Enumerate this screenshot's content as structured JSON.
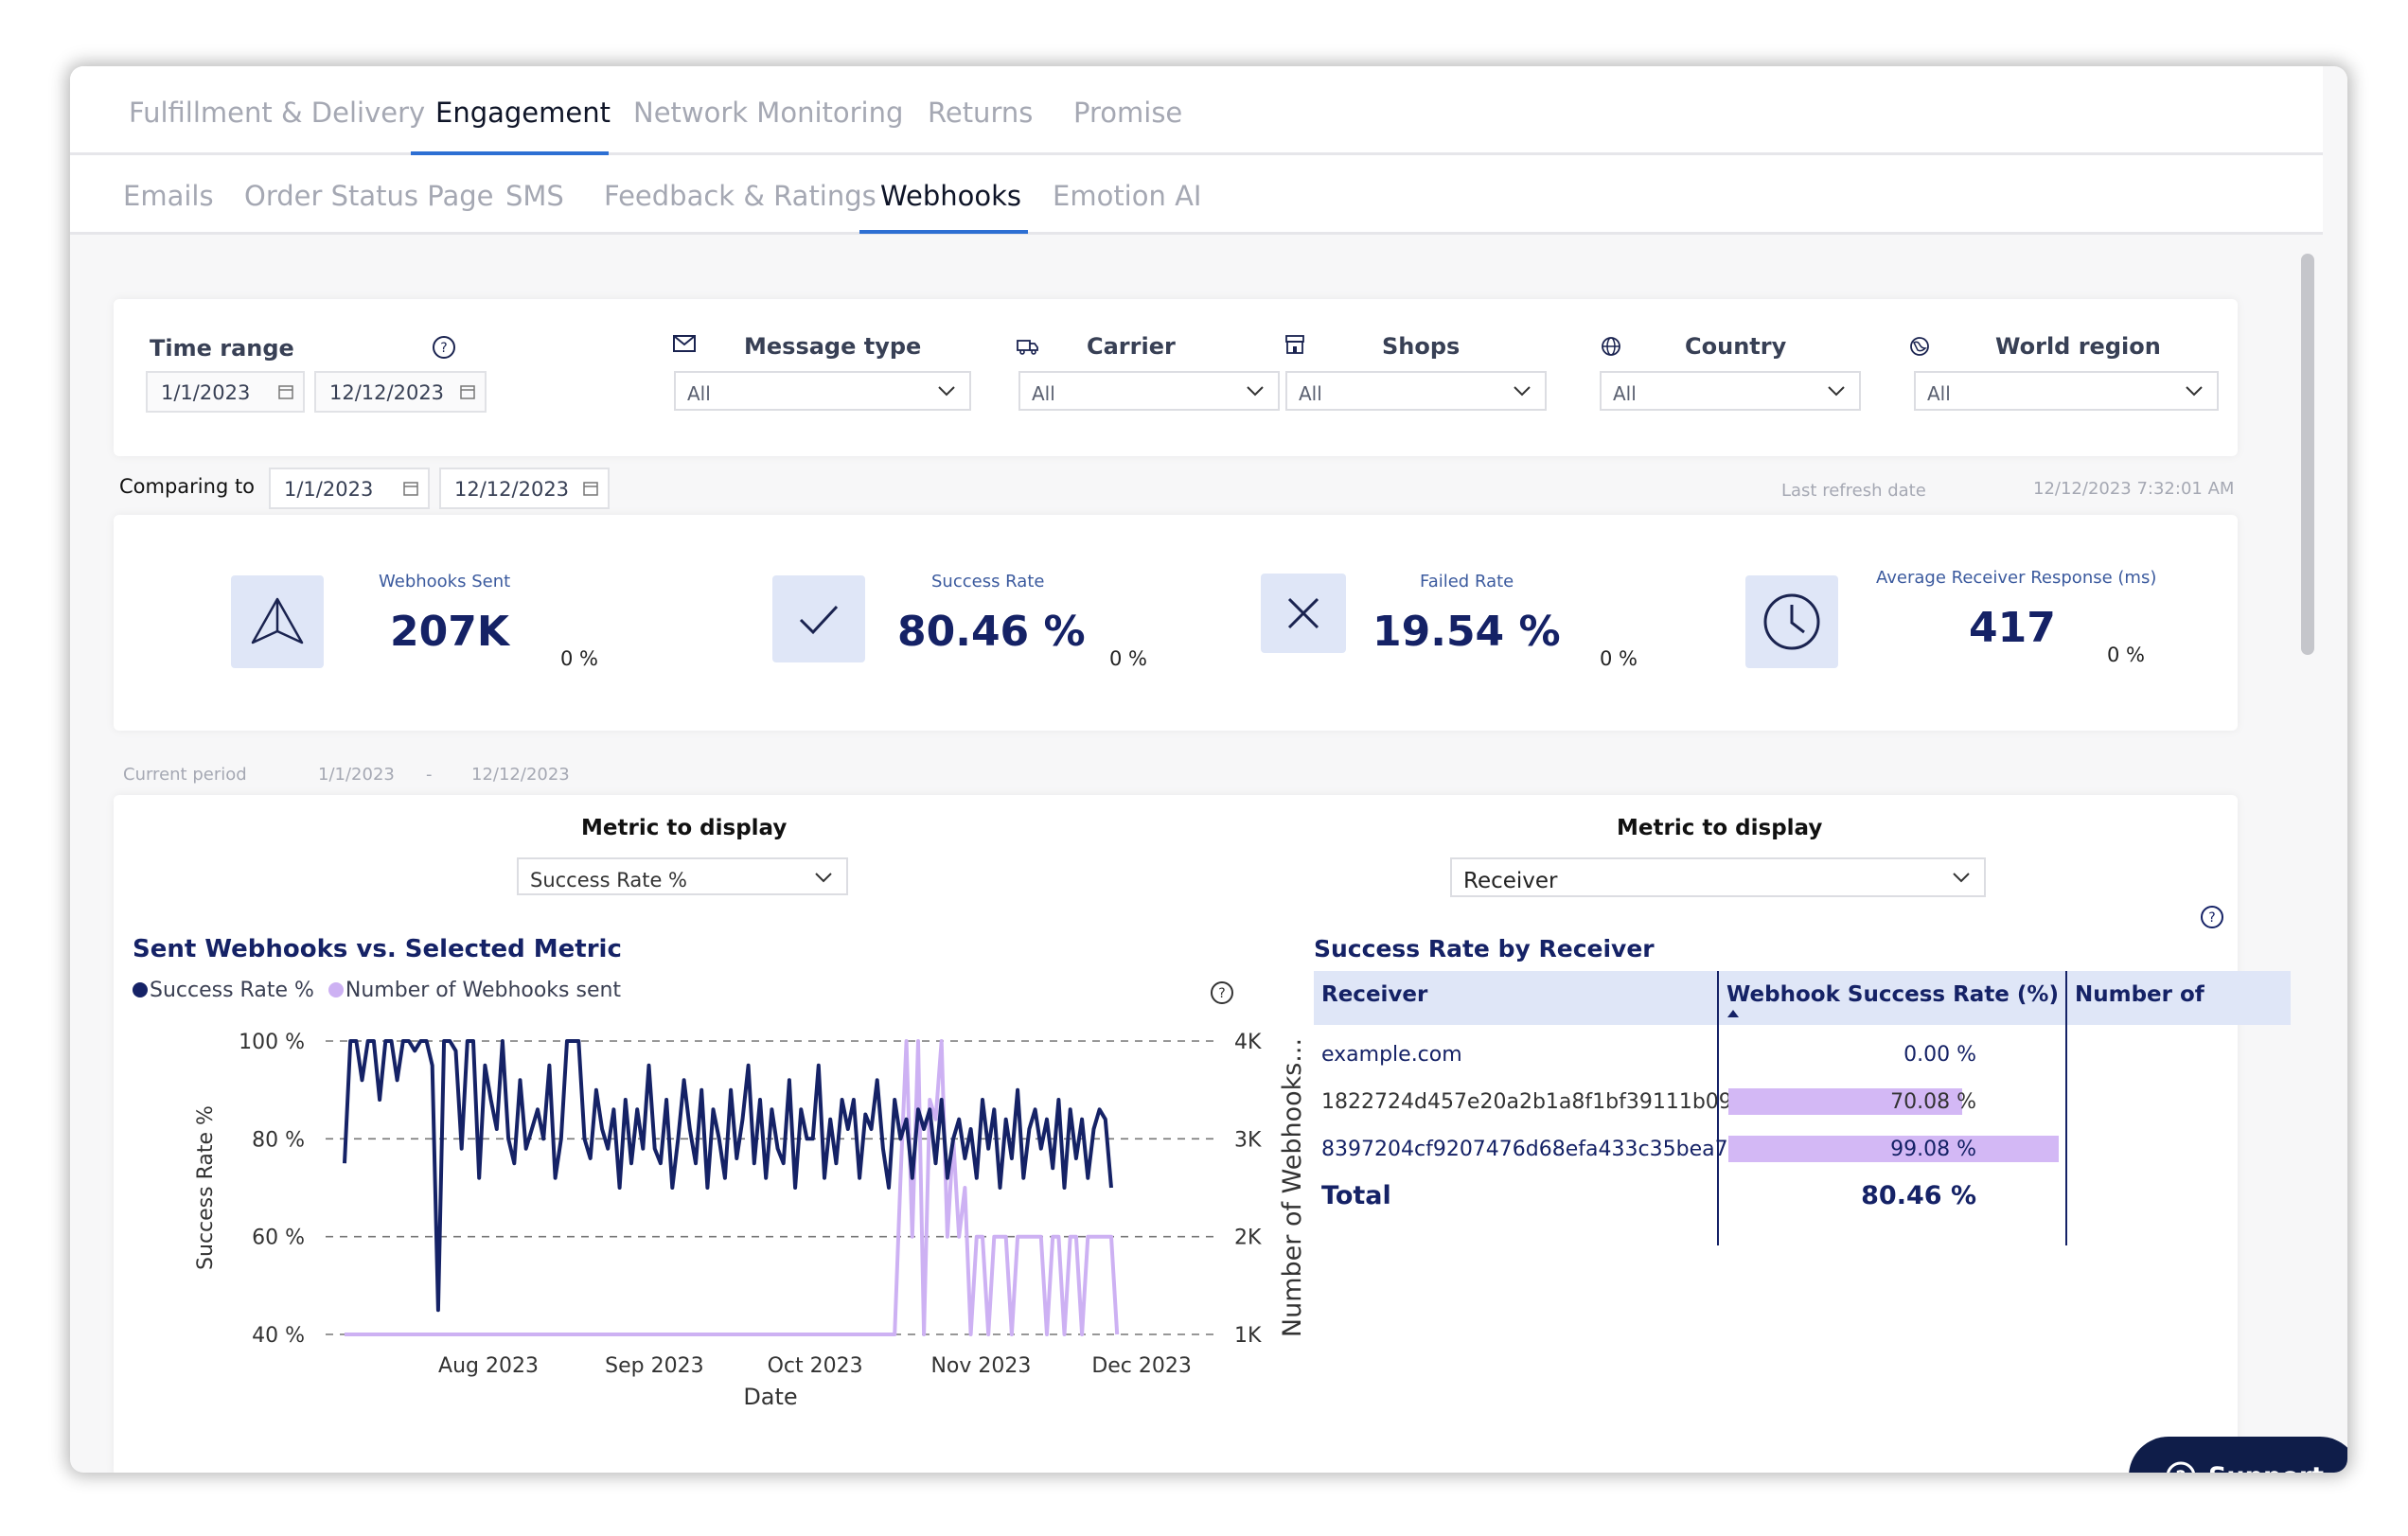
{
  "main_tabs": [
    {
      "label": "Fulfillment & Delivery",
      "active": false
    },
    {
      "label": "Engagement",
      "active": true
    },
    {
      "label": "Network Monitoring",
      "active": false
    },
    {
      "label": "Returns",
      "active": false
    },
    {
      "label": "Promise",
      "active": false
    }
  ],
  "sub_tabs": [
    {
      "label": "Emails",
      "active": false
    },
    {
      "label": "Order Status Page",
      "active": false
    },
    {
      "label": "SMS",
      "active": false
    },
    {
      "label": "Feedback & Ratings",
      "active": false
    },
    {
      "label": "Webhooks",
      "active": true
    },
    {
      "label": "Emotion AI",
      "active": false
    }
  ],
  "filters": {
    "time_range_label": "Time range",
    "time_start": "1/1/2023",
    "time_end": "12/12/2023",
    "message_type": {
      "label": "Message type",
      "value": "All"
    },
    "carrier": {
      "label": "Carrier",
      "value": "All"
    },
    "shops": {
      "label": "Shops",
      "value": "All"
    },
    "country": {
      "label": "Country",
      "value": "All"
    },
    "world_region": {
      "label": "World region",
      "value": "All"
    }
  },
  "comparing": {
    "label": "Comparing to",
    "start": "1/1/2023",
    "end": "12/12/2023"
  },
  "refresh": {
    "label": "Last refresh date",
    "value": "12/12/2023 7:32:01 AM"
  },
  "kpis": [
    {
      "label": "Webhooks Sent",
      "value": "207K",
      "delta": "0 %",
      "icon": "send-icon"
    },
    {
      "label": "Success Rate",
      "value": "80.46 %",
      "delta": "0 %",
      "icon": "check-icon"
    },
    {
      "label": "Failed Rate",
      "value": "19.54 %",
      "delta": "0 %",
      "icon": "x-icon"
    },
    {
      "label": "Average Receiver Response (ms)",
      "value": "417",
      "delta": "0 %",
      "icon": "clock-icon"
    }
  ],
  "current_period": {
    "label": "Current period",
    "start": "1/1/2023",
    "sep": "-",
    "end": "12/12/2023"
  },
  "left_panel": {
    "metric_label": "Metric to display",
    "metric_value": "Success Rate %"
  },
  "right_panel": {
    "metric_label": "Metric to display",
    "metric_value": "Receiver"
  },
  "chart_data": {
    "type": "line",
    "title": "Sent Webhooks vs. Selected Metric",
    "xlabel": "Date",
    "ylabel": "Success Rate %",
    "y2label": "Number of Webhooks...",
    "x_ticks": [
      "Aug 2023",
      "Sep 2023",
      "Oct 2023",
      "Nov 2023",
      "Dec 2023"
    ],
    "y_ticks": [
      "40 %",
      "60 %",
      "80 %",
      "100 %"
    ],
    "y2_ticks": [
      "1K",
      "2K",
      "3K",
      "4K"
    ],
    "ylim": [
      40,
      100
    ],
    "y2lim": [
      1000,
      4000
    ],
    "x_range": [
      "2023-07-03",
      "2023-12-13"
    ],
    "grid": "horizontal dashed",
    "legend_position": "top-left",
    "series": [
      {
        "name": "Success Rate %",
        "color": "#152266",
        "axis": "left",
        "values": [
          75,
          100,
          100,
          92,
          100,
          100,
          88,
          100,
          100,
          92,
          100,
          100,
          98,
          100,
          100,
          95,
          45,
          100,
          100,
          98,
          78,
          100,
          100,
          72,
          95,
          88,
          82,
          100,
          80,
          75,
          92,
          78,
          82,
          86,
          80,
          95,
          72,
          80,
          100,
          100,
          100,
          80,
          76,
          90,
          82,
          78,
          86,
          70,
          88,
          75,
          86,
          78,
          95,
          78,
          75,
          88,
          70,
          80,
          92,
          82,
          75,
          90,
          70,
          86,
          80,
          72,
          90,
          76,
          84,
          95,
          75,
          88,
          72,
          86,
          78,
          75,
          92,
          70,
          86,
          80,
          80,
          95,
          72,
          84,
          75,
          88,
          82,
          88,
          72,
          85,
          82,
          92,
          78,
          70,
          88,
          80,
          84,
          72,
          86,
          82,
          86,
          75,
          88,
          72,
          80,
          84,
          76,
          82,
          72,
          88,
          78,
          86,
          70,
          84,
          76,
          90,
          72,
          82,
          86,
          78,
          84,
          74,
          88,
          70,
          86,
          76,
          84,
          72,
          82,
          86,
          84,
          70
        ]
      },
      {
        "name": "Number of Webhooks sent",
        "color": "#cdb1f3",
        "axis": "right",
        "values": [
          1000,
          1000,
          1000,
          1000,
          1000,
          1000,
          1000,
          1000,
          1000,
          1000,
          1000,
          1000,
          1000,
          1000,
          1000,
          1000,
          1000,
          1000,
          1000,
          1000,
          1000,
          1000,
          1000,
          1000,
          1000,
          1000,
          1000,
          1000,
          1000,
          1000,
          1000,
          1000,
          1000,
          1000,
          1000,
          1000,
          1000,
          1000,
          1000,
          1000,
          1000,
          1000,
          1000,
          1000,
          1000,
          1000,
          1000,
          1000,
          1000,
          1000,
          1000,
          1000,
          1000,
          1000,
          1000,
          1000,
          1000,
          1000,
          1000,
          1000,
          1000,
          1000,
          1000,
          1000,
          1000,
          1000,
          1000,
          1000,
          1000,
          1000,
          1000,
          1000,
          1000,
          1000,
          1000,
          1000,
          1000,
          1000,
          1000,
          1000,
          1000,
          1000,
          1000,
          1000,
          1000,
          1000,
          1000,
          1000,
          1000,
          1000,
          1000,
          1000,
          1000,
          1000,
          1000,
          2600,
          4000,
          2000,
          4000,
          1000,
          3400,
          3200,
          4000,
          2000,
          3000,
          2000,
          2500,
          1000,
          2000,
          2000,
          1000,
          2000,
          2000,
          2000,
          1000,
          2000,
          2000,
          2000,
          2000,
          2000,
          1000,
          2000,
          2000,
          1000,
          2000,
          2000,
          1000,
          2000,
          2000,
          2000,
          2000,
          2000,
          1000
        ]
      }
    ]
  },
  "receiver_table": {
    "title": "Success Rate by Receiver",
    "columns": [
      "Receiver",
      "Webhook Success Rate (%)",
      "Number of"
    ],
    "rows": [
      {
        "receiver": "example.com",
        "rate_label": "0.00 %",
        "rate": 0.0
      },
      {
        "receiver": "1822724d457e20a2b1a8f1bf39111b09",
        "rate_label": "70.08 %",
        "rate": 70.08
      },
      {
        "receiver": "8397204cf9207476d68efa433c35bea7",
        "rate_label": "99.08 %",
        "rate": 99.08
      }
    ],
    "total_label": "Total",
    "total_value": "80.46 %"
  },
  "support": {
    "label": "Support"
  },
  "colors": {
    "navy": "#152266",
    "accent": "#2d6fd3",
    "lavender": "#cdb1f3"
  }
}
